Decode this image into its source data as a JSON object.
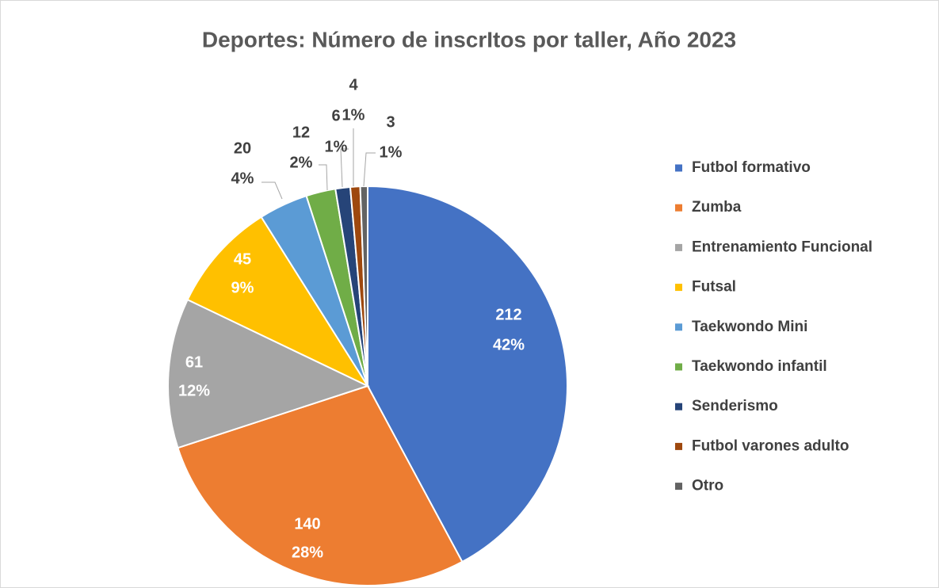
{
  "chart_data": {
    "type": "pie",
    "title": "Deportes: Número de inscrItos por taller, Año 2023",
    "categories": [
      "Futbol formativo",
      "Zumba",
      "Entrenamiento Funcional",
      "Futsal",
      "Taekwondo Mini",
      "Taekwondo infantil",
      "Senderismo",
      "Futbol varones adulto",
      "Otro"
    ],
    "values": [
      212,
      140,
      61,
      45,
      20,
      12,
      6,
      4,
      3
    ],
    "percent_labels": [
      "42%",
      "28%",
      "12%",
      "9%",
      "4%",
      "2%",
      "1%",
      "1%",
      "1%"
    ],
    "colors": [
      "#4472c4",
      "#ed7d31",
      "#a5a5a5",
      "#ffc000",
      "#5b9bd5",
      "#70ad47",
      "#264478",
      "#9e480e",
      "#636363"
    ],
    "legend": "right"
  }
}
